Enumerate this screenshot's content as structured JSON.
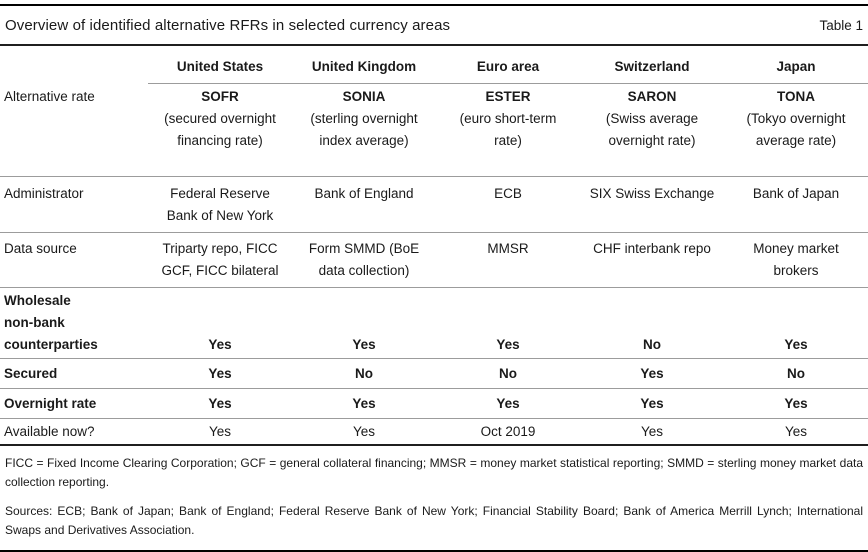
{
  "title": "Overview of identified alternative RFRs in selected currency areas",
  "table_label": "Table 1",
  "colors": {
    "heavy_rule": "#000000",
    "medium_rule": "#1f1f1f",
    "light_rule": "#9c9c9c",
    "text": "#1a1a1a",
    "background": "#ffffff"
  },
  "table": {
    "columns": [
      "United States",
      "United Kingdom",
      "Euro area",
      "Switzerland",
      "Japan"
    ],
    "alternative_rate": {
      "label": "Alternative rate",
      "cells": [
        {
          "name": "SOFR",
          "desc": "(secured overnight\nfinancing rate)"
        },
        {
          "name": "SONIA",
          "desc": "(sterling overnight\nindex average)"
        },
        {
          "name": "ESTER",
          "desc": "(euro short-term\nrate)"
        },
        {
          "name": "SARON",
          "desc": "(Swiss average\novernight rate)"
        },
        {
          "name": "TONA",
          "desc": "(Tokyo overnight\naverage rate)"
        }
      ]
    },
    "administrator": {
      "label": "Administrator",
      "cells": [
        "Federal Reserve\nBank of New York",
        "Bank of England",
        "ECB",
        "SIX Swiss Exchange",
        "Bank of Japan"
      ]
    },
    "data_source": {
      "label": "Data source",
      "cells": [
        "Triparty repo, FICC\nGCF, FICC bilateral",
        "Form SMMD (BoE\ndata collection)",
        "MMSR",
        "CHF interbank repo",
        "Money market\nbrokers"
      ]
    },
    "wholesale": {
      "label": "Wholesale\nnon-bank\ncounterparties",
      "cells": [
        "Yes",
        "Yes",
        "Yes",
        "No",
        "Yes"
      ]
    },
    "secured": {
      "label": "Secured",
      "cells": [
        "Yes",
        "No",
        "No",
        "Yes",
        "No"
      ]
    },
    "overnight_rate": {
      "label": "Overnight rate",
      "cells": [
        "Yes",
        "Yes",
        "Yes",
        "Yes",
        "Yes"
      ]
    },
    "available_now": {
      "label": "Available now?",
      "cells": [
        "Yes",
        "Yes",
        "Oct 2019",
        "Yes",
        "Yes"
      ]
    }
  },
  "footnotes": {
    "abbreviations": "FICC = Fixed Income Clearing Corporation; GCF = general collateral financing; MMSR = money market statistical reporting; SMMD = sterling money market data collection reporting.",
    "sources": "Sources: ECB; Bank of Japan; Bank of England; Federal Reserve Bank of New York; Financial Stability Board; Bank of America Merrill Lynch; International Swaps and Derivatives Association."
  }
}
